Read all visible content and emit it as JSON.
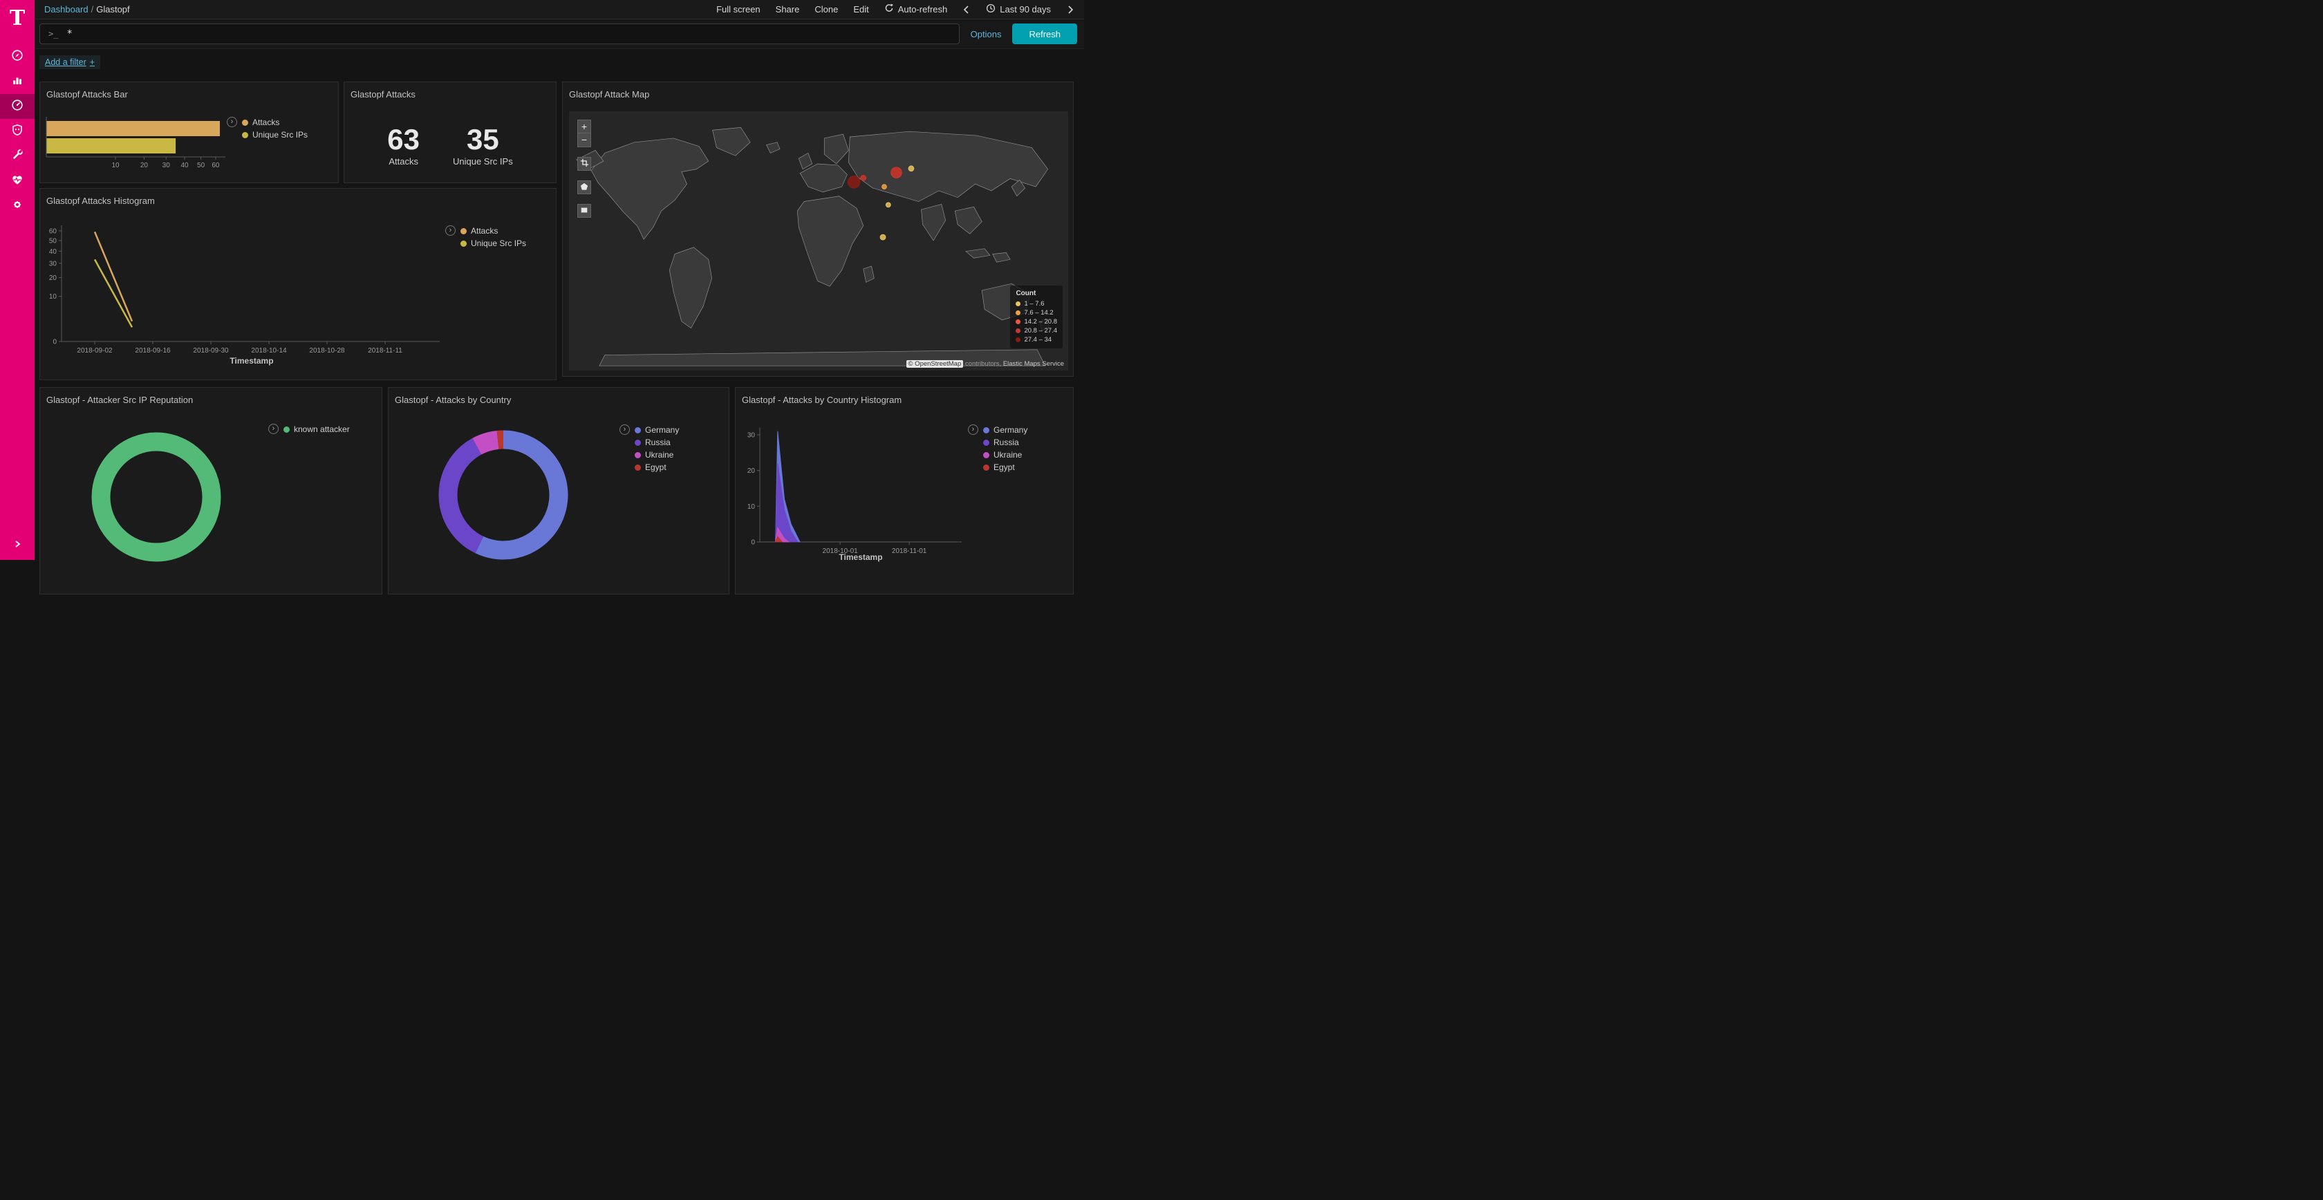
{
  "app": {
    "accent_color": "#e20074",
    "link_color": "#5fb5d8",
    "refresh_button_color": "#00a0b0"
  },
  "sidebar": {
    "logo_letter": "T",
    "icons": [
      "discover",
      "visualize",
      "dashboard",
      "siem",
      "dev-tools",
      "monitoring",
      "management"
    ],
    "selected": "dashboard"
  },
  "topbar": {
    "breadcrumb": {
      "parent": "Dashboard",
      "separator": "/",
      "current": "Glastopf"
    },
    "full_screen": "Full screen",
    "share": "Share",
    "clone": "Clone",
    "edit": "Edit",
    "auto_refresh": "Auto-refresh",
    "time_range": "Last 90 days"
  },
  "query_bar": {
    "prompt": ">_",
    "value": "*",
    "options_label": "Options",
    "refresh_label": "Refresh"
  },
  "filter_bar": {
    "add_filter_label": "Add a filter",
    "plus": "+"
  },
  "panels": {
    "attacks_bar": {
      "title": "Glastopf Attacks Bar",
      "legend": [
        {
          "label": "Attacks",
          "color": "#d8a75c"
        },
        {
          "label": "Unique Src IPs",
          "color": "#c9b944"
        }
      ]
    },
    "attacks_metric": {
      "title": "Glastopf Attacks",
      "metrics": [
        {
          "value": "63",
          "label": "Attacks"
        },
        {
          "value": "35",
          "label": "Unique Src IPs"
        }
      ]
    },
    "attack_map": {
      "title": "Glastopf Attack Map",
      "zoom_in": "+",
      "zoom_out": "−",
      "legend_title": "Count",
      "legend": [
        {
          "label": "1 – 7.6",
          "color": "#e7c55f"
        },
        {
          "label": "7.6 – 14.2",
          "color": "#eda440"
        },
        {
          "label": "14.2 – 20.8",
          "color": "#f1543f"
        },
        {
          "label": "20.8 – 27.4",
          "color": "#c43a31"
        },
        {
          "label": "27.4 – 34",
          "color": "#8c1c13"
        }
      ],
      "attribution": {
        "osm": "© OpenStreetMap",
        "contributors": "contributors,",
        "ems": "Elastic Maps Service"
      }
    },
    "attacks_histogram": {
      "title": "Glastopf Attacks Histogram",
      "legend": [
        {
          "label": "Attacks",
          "color": "#d8a75c"
        },
        {
          "label": "Unique Src IPs",
          "color": "#c9b944"
        }
      ]
    },
    "reputation": {
      "title": "Glastopf - Attacker Src IP Reputation",
      "legend": [
        {
          "label": "known attacker",
          "color": "#53ba77"
        }
      ]
    },
    "by_country": {
      "title": "Glastopf - Attacks by Country",
      "legend": [
        {
          "label": "Germany",
          "color": "#6977d6"
        },
        {
          "label": "Russia",
          "color": "#6b46c8"
        },
        {
          "label": "Ukraine",
          "color": "#c44fc4"
        },
        {
          "label": "Egypt",
          "color": "#b8372e"
        }
      ]
    },
    "by_country_histogram": {
      "title": "Glastopf - Attacks by Country Histogram",
      "legend": [
        {
          "label": "Germany",
          "color": "#6977d6"
        },
        {
          "label": "Russia",
          "color": "#6b46c8"
        },
        {
          "label": "Ukraine",
          "color": "#c44fc4"
        },
        {
          "label": "Egypt",
          "color": "#b8372e"
        }
      ]
    }
  },
  "chart_data": [
    {
      "id": "attacks_bar",
      "type": "bar",
      "orientation": "horizontal",
      "x_scale": "sqrt",
      "categories": [
        "Attacks",
        "Unique Src IPs"
      ],
      "values": [
        63,
        35
      ],
      "colors": [
        "#d8a75c",
        "#c9b944"
      ],
      "x_ticks": [
        10,
        20,
        30,
        40,
        50,
        60
      ],
      "xlim": [
        0,
        63
      ]
    },
    {
      "id": "attacks_histogram",
      "type": "line",
      "y_scale": "sqrt",
      "ylim": [
        0,
        60
      ],
      "y_ticks": [
        0,
        10,
        20,
        30,
        40,
        50,
        60
      ],
      "x_ticks": [
        "2018-09-02",
        "2018-09-16",
        "2018-09-30",
        "2018-10-14",
        "2018-10-28",
        "2018-11-11"
      ],
      "xlabel": "Timestamp",
      "series": [
        {
          "name": "Attacks",
          "color": "#d8a75c",
          "points": [
            [
              "2018-09-02",
              59
            ],
            [
              "2018-09-11",
              2
            ]
          ]
        },
        {
          "name": "Unique Src IPs",
          "color": "#c9b944",
          "points": [
            [
              "2018-09-02",
              33
            ],
            [
              "2018-09-11",
              1
            ]
          ]
        }
      ]
    },
    {
      "id": "reputation_donut",
      "type": "pie",
      "slices": [
        {
          "label": "known attacker",
          "value": 63,
          "color": "#53ba77"
        }
      ]
    },
    {
      "id": "country_donut",
      "type": "pie",
      "slices": [
        {
          "label": "Germany",
          "value": 36,
          "color": "#6977d6"
        },
        {
          "label": "Russia",
          "value": 22,
          "color": "#6b46c8"
        },
        {
          "label": "Ukraine",
          "value": 4,
          "color": "#c44fc4"
        },
        {
          "label": "Egypt",
          "value": 1,
          "color": "#b8372e"
        }
      ]
    },
    {
      "id": "country_histogram",
      "type": "area",
      "ylim": [
        0,
        32
      ],
      "y_ticks": [
        0,
        10,
        20,
        30
      ],
      "x_ticks": [
        "2018-10-01",
        "2018-11-01"
      ],
      "xlabel": "Timestamp",
      "series": [
        {
          "name": "Germany",
          "color": "#6977d6",
          "points": [
            [
              "2018-09-02",
              0
            ],
            [
              "2018-09-03",
              31
            ],
            [
              "2018-09-06",
              12
            ],
            [
              "2018-09-09",
              5
            ],
            [
              "2018-09-13",
              0
            ]
          ]
        },
        {
          "name": "Russia",
          "color": "#6b46c8",
          "points": [
            [
              "2018-09-02",
              0
            ],
            [
              "2018-09-03",
              22
            ],
            [
              "2018-09-06",
              9
            ],
            [
              "2018-09-09",
              3
            ],
            [
              "2018-09-12",
              0
            ]
          ]
        },
        {
          "name": "Ukraine",
          "color": "#c44fc4",
          "points": [
            [
              "2018-09-02",
              0
            ],
            [
              "2018-09-03",
              4
            ],
            [
              "2018-09-06",
              1
            ],
            [
              "2018-09-08",
              0
            ]
          ]
        },
        {
          "name": "Egypt",
          "color": "#b8372e",
          "points": [
            [
              "2018-09-02",
              0
            ],
            [
              "2018-09-03",
              1.5
            ],
            [
              "2018-09-05",
              0
            ]
          ]
        }
      ]
    },
    {
      "id": "attack_map",
      "type": "map",
      "legend_title": "Count",
      "markers": [
        {
          "x": 418,
          "y": 105,
          "r": 9,
          "color": "#8c1c13"
        },
        {
          "x": 481,
          "y": 91,
          "r": 8,
          "color": "#d0342b"
        },
        {
          "x": 432,
          "y": 99,
          "r": 4,
          "color": "#d0342b"
        },
        {
          "x": 503,
          "y": 85,
          "r": 4,
          "color": "#e7c55f"
        },
        {
          "x": 463,
          "y": 112,
          "r": 3.5,
          "color": "#eda440"
        },
        {
          "x": 469,
          "y": 139,
          "r": 3.5,
          "color": "#e7c55f"
        },
        {
          "x": 461,
          "y": 187,
          "r": 4,
          "color": "#e7c55f"
        }
      ]
    }
  ]
}
